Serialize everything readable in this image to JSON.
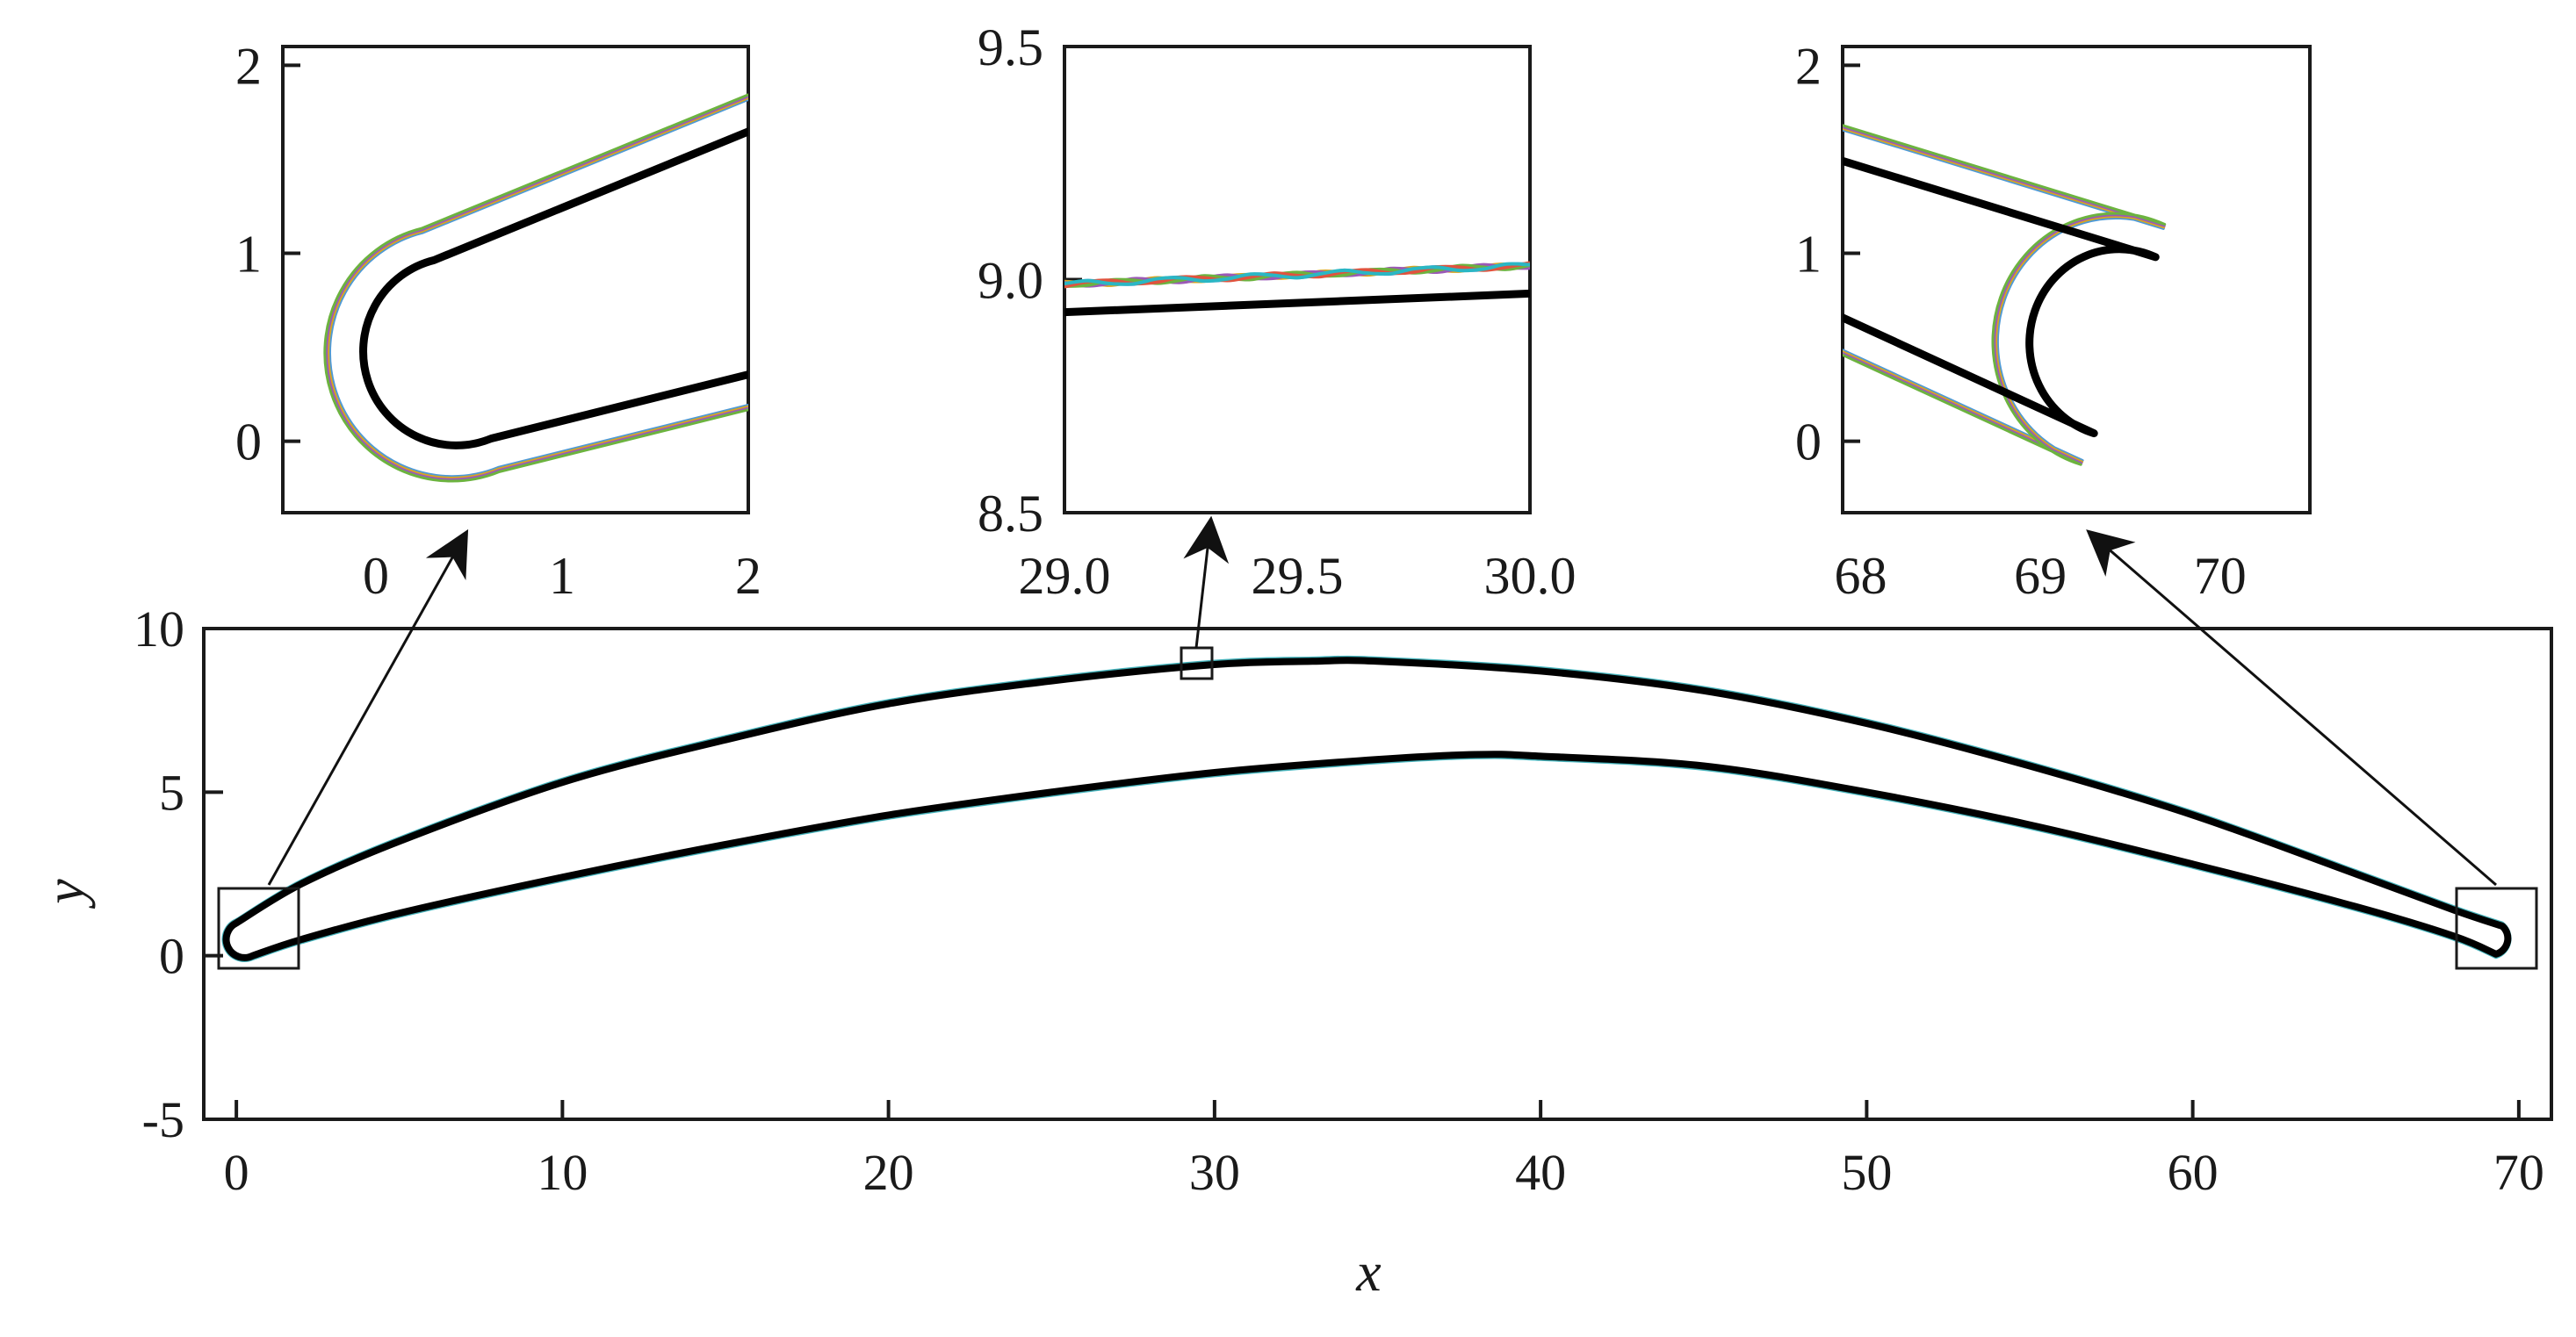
{
  "chart_data": [
    {
      "id": "main",
      "type": "line",
      "title": "",
      "xlabel": "x",
      "ylabel": "y",
      "xlim": [
        -1,
        71
      ],
      "ylim": [
        -5,
        10
      ],
      "xticks": [
        "0",
        "10",
        "20",
        "30",
        "40",
        "50",
        "60",
        "70"
      ],
      "yticks": [
        "-5",
        "0",
        "5",
        "10"
      ],
      "grid": false,
      "series": [
        {
          "role": "reference contour (black)",
          "color": "#000000",
          "upper_surface": {
            "x": [
              0,
              2,
              5,
              10,
              15,
              20,
              25,
              30,
              33,
              35,
              40,
              45,
              50,
              55,
              60,
              65,
              68,
              69.5
            ],
            "y": [
              1.0,
              2.2,
              3.5,
              5.3,
              6.6,
              7.7,
              8.4,
              8.9,
              9.0,
              9.0,
              8.7,
              8.1,
              7.1,
              5.8,
              4.3,
              2.5,
              1.4,
              0.9
            ]
          },
          "lower_surface": {
            "x": [
              0.5,
              2,
              5,
              10,
              15,
              20,
              25,
              30,
              35,
              38,
              40,
              45,
              50,
              55,
              60,
              65,
              68,
              69.3
            ],
            "y": [
              0.0,
              0.5,
              1.3,
              2.4,
              3.4,
              4.3,
              5.0,
              5.6,
              6.0,
              6.15,
              6.1,
              5.8,
              5.0,
              4.0,
              2.8,
              1.5,
              0.6,
              0.05
            ]
          },
          "leading_edge": {
            "center": [
              0.5,
              0.5
            ],
            "radius": 0.5
          },
          "trailing_edge": {
            "center": [
              69.5,
              0.5
            ],
            "radius": 0.5
          }
        },
        {
          "role": "offset contours (colored)",
          "colors": [
            "#4f9ad6",
            "#d9a520",
            "#9b59b6",
            "#6cb33f",
            "#e0533e",
            "#2ab7c4"
          ],
          "offset": 0.16
        }
      ],
      "zoom_boxes": [
        {
          "target": "inset_left",
          "xlim": [
            -0.5,
            2
          ],
          "ylim": [
            -0.4,
            2.1
          ]
        },
        {
          "target": "inset_middle",
          "xlim": [
            29.0,
            30.0
          ],
          "ylim": [
            8.5,
            9.5
          ]
        },
        {
          "target": "inset_right",
          "xlim": [
            68,
            70.5
          ],
          "ylim": [
            -0.4,
            2.1
          ]
        }
      ]
    },
    {
      "id": "inset_left",
      "type": "line",
      "xlim": [
        -0.5,
        2
      ],
      "ylim": [
        -0.38,
        2.1
      ],
      "xticks": [
        "0",
        "1",
        "2"
      ],
      "yticks": [
        "0",
        "1",
        "2"
      ],
      "series": [
        {
          "role": "reference contour (black)",
          "color": "#000000",
          "upper_segment": {
            "x": [
              0.1,
              2
            ],
            "y": [
              1.0,
              1.77
            ]
          },
          "lower_segment": {
            "x": [
              0.5,
              2
            ],
            "y": [
              0.0,
              0.37
            ]
          },
          "nose_center": [
            0.5,
            0.5
          ],
          "nose_radius": 0.5
        },
        {
          "role": "offset contours (colored)",
          "colors": [
            "#4f9ad6",
            "#d9a520",
            "#9b59b6",
            "#6cb33f"
          ],
          "offset": 0.17
        }
      ]
    },
    {
      "id": "inset_middle",
      "type": "line",
      "xlim": [
        29.0,
        30.0
      ],
      "ylim": [
        8.5,
        9.5
      ],
      "xticks": [
        "29.0",
        "29.5",
        "30.0"
      ],
      "yticks": [
        "8.5",
        "9.0",
        "9.5"
      ],
      "series": [
        {
          "role": "reference contour (black)",
          "color": "#000000",
          "x": [
            29.0,
            30.0
          ],
          "y": [
            8.93,
            8.97
          ]
        },
        {
          "role": "offset contours (colored)",
          "colors": [
            "#4f9ad6",
            "#d9a520",
            "#9b59b6",
            "#6cb33f",
            "#e0533e",
            "#2ab7c4"
          ],
          "x": [
            29.0,
            30.0
          ],
          "y": [
            8.99,
            9.03
          ]
        }
      ]
    },
    {
      "id": "inset_right",
      "type": "line",
      "xlim": [
        67.9,
        70.5
      ],
      "ylim": [
        -0.38,
        2.1
      ],
      "xticks": [
        "68",
        "69",
        "70"
      ],
      "yticks": [
        "0",
        "1",
        "2"
      ],
      "series": [
        {
          "role": "reference contour (black)",
          "color": "#000000",
          "upper_segment": {
            "x": [
              67.9,
              69.65
            ],
            "y": [
              1.77,
              1.0
            ]
          },
          "lower_segment": {
            "x": [
              67.9,
              69.5
            ],
            "y": [
              0.47,
              0.0
            ]
          },
          "nose_center": [
            69.5,
            0.5
          ],
          "nose_radius": 0.5
        },
        {
          "role": "offset contours (colored)",
          "colors": [
            "#4f9ad6",
            "#d9a520",
            "#9b59b6",
            "#6cb33f"
          ],
          "offset": 0.17
        }
      ]
    }
  ]
}
